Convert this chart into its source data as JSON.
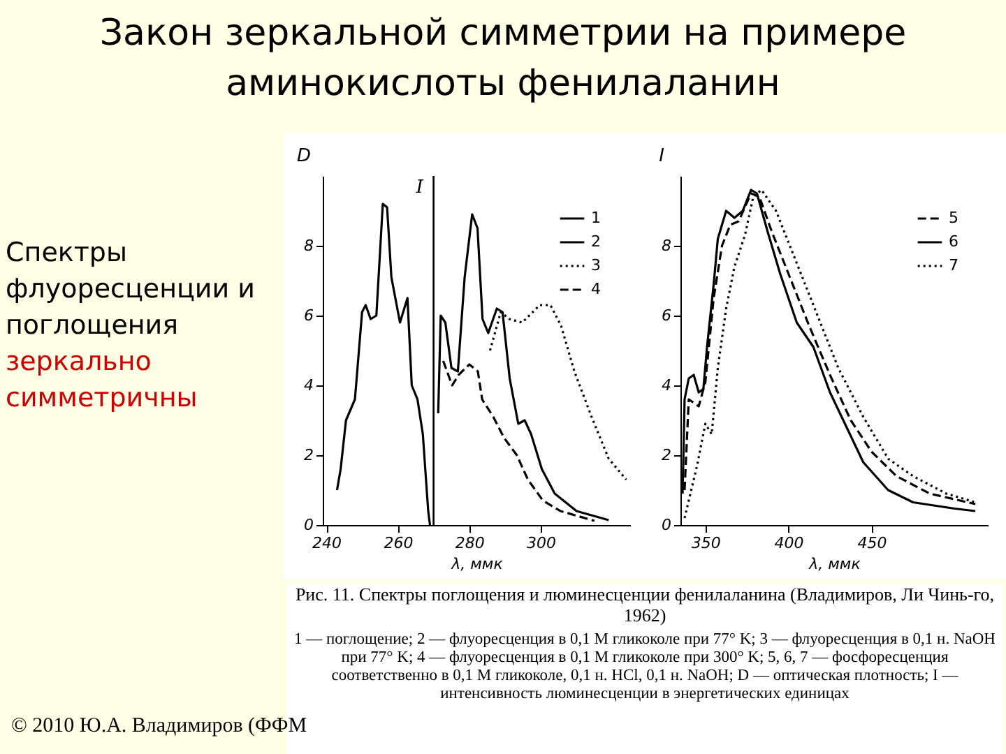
{
  "chart_data": [
    {
      "type": "line",
      "title": "Закон зеркальной симметрии на примере аминокислоты фенилаланин",
      "xlabel": "λ, ммк",
      "ylabel": "D",
      "xlim": [
        239,
        325
      ],
      "xticks": [
        240,
        260,
        280,
        300
      ],
      "ylim": [
        0,
        10
      ],
      "yticks": [
        0,
        2,
        4,
        6,
        8
      ],
      "grid": false,
      "legend": "top right",
      "marker": "none",
      "annotations": [
        "Спектры флуоресценции и поглощения",
        "зеркально симметричны",
        "Рис. 11. Спектры поглощения и люминесценции фенилаланина (Владимиров, Ли Чинь-го, 1962)",
        "1 — поглощение; 2 — флуоресценция в 0,1 M гликоколе при 77° K; 3 — флуоресценция в 0,1 н. NaOH при 77° K; 4 — флуоресценция в 0,1 M гликоколе при 300° K; 5, 6, 7 — фосфоресценция соответственно в 0,1 M гликоколе, 0,1 н. HCl, 0,1 н. NaOH; D — оптическая плотность; I — интенсивность люминесценции в энергетических единицах",
        "© 2010 Ю.А. Владимиров (ФФМ"
      ],
      "ref_lines": [
        {
          "axis": "x",
          "value": 270,
          "label": "I",
          "color": "#000000"
        }
      ],
      "series": [
        {
          "name": "1",
          "color": "#000000",
          "line_style": "solid",
          "x": [
            243,
            244,
            245.5,
            248,
            250,
            251,
            252.4,
            254,
            255.8,
            257,
            258.2,
            260.6,
            262.7,
            263.9,
            265.5,
            267,
            268.5,
            269
          ],
          "values": [
            1.0,
            1.6,
            3.0,
            3.6,
            6.1,
            6.3,
            5.9,
            6.0,
            9.2,
            9.1,
            7.1,
            5.8,
            6.5,
            4.0,
            3.6,
            2.6,
            0.4,
            0
          ]
        },
        {
          "name": "2",
          "color": "#000000",
          "line_style": "solid",
          "x": [
            271.3,
            272,
            273.3,
            275,
            276.8,
            278.7,
            280.8,
            282.3,
            283.7,
            285.3,
            287.7,
            289.3,
            291.3,
            293.7,
            295.5,
            297.3,
            300.3,
            303.9,
            310,
            319
          ],
          "values": [
            3.2,
            6.0,
            5.8,
            4.5,
            4.4,
            7.1,
            8.9,
            8.5,
            5.9,
            5.5,
            6.2,
            6.1,
            4.2,
            2.9,
            3.0,
            2.6,
            1.6,
            0.9,
            0.4,
            0.14
          ]
        },
        {
          "name": "3",
          "color": "#000000",
          "line_style": "dotted",
          "x": [
            285.8,
            288.8,
            291.2,
            294.8,
            299.7,
            302.7,
            305.7,
            309.4,
            314.2,
            319,
            323.9
          ],
          "values": [
            5.0,
            6.1,
            5.9,
            5.8,
            6.3,
            6.3,
            5.7,
            4.4,
            3.1,
            1.9,
            1.3
          ]
        },
        {
          "name": "4",
          "color": "#000000",
          "line_style": "dashed",
          "x": [
            272.7,
            275.2,
            277,
            280,
            282.4,
            283.6,
            286.7,
            289.7,
            293.3,
            296.4,
            300.6,
            305.5,
            315
          ],
          "values": [
            4.7,
            4.0,
            4.3,
            4.6,
            4.4,
            3.6,
            3.1,
            2.5,
            2.0,
            1.3,
            0.7,
            0.4,
            0.12
          ]
        }
      ]
    },
    {
      "type": "line",
      "xlabel": "λ, ммк",
      "ylabel": "I",
      "xlim": [
        335,
        520
      ],
      "xticks": [
        350,
        400,
        450
      ],
      "ylim": [
        0,
        10
      ],
      "yticks": [
        0,
        2,
        4,
        6,
        8
      ],
      "grid": false,
      "legend": "top right",
      "marker": "none",
      "series": [
        {
          "name": "5",
          "color": "#000000",
          "line_style": "dashed",
          "x": [
            337.5,
            340,
            346,
            350,
            355,
            360,
            365,
            370,
            377.5,
            382.5,
            390,
            400,
            412.5,
            425,
            437.5,
            450,
            465,
            485,
            512.5
          ],
          "values": [
            1.0,
            3.6,
            3.4,
            4.1,
            6.5,
            8.0,
            8.6,
            8.7,
            9.5,
            9.4,
            8.4,
            7.2,
            5.7,
            4.3,
            3.0,
            2.1,
            1.4,
            0.9,
            0.6
          ]
        },
        {
          "name": "6",
          "color": "#000000",
          "line_style": "solid",
          "x": [
            336.3,
            337.5,
            340,
            343,
            346,
            348.8,
            351,
            355,
            357.5,
            362.5,
            367.5,
            372.5,
            377.5,
            381,
            387.5,
            395,
            405,
            415,
            425,
            435,
            445,
            460,
            475,
            500,
            512.5
          ],
          "values": [
            0.9,
            3.6,
            4.2,
            4.3,
            3.8,
            3.9,
            5.1,
            6.9,
            8.2,
            9.0,
            8.8,
            9.0,
            9.6,
            9.5,
            8.4,
            7.2,
            5.8,
            5.1,
            3.8,
            2.8,
            1.8,
            1.0,
            0.65,
            0.47,
            0.4
          ]
        },
        {
          "name": "7",
          "color": "#000000",
          "line_style": "dotted",
          "x": [
            337.5,
            345,
            350,
            353.8,
            357.5,
            362.5,
            367.5,
            373.8,
            378.8,
            383.8,
            392.5,
            402.5,
            415,
            430,
            445,
            460,
            475,
            495,
            512.5
          ],
          "values": [
            0.2,
            1.7,
            2.9,
            2.6,
            4.5,
            6.2,
            7.4,
            8.3,
            9.4,
            9.6,
            9.0,
            7.8,
            6.3,
            4.5,
            3.1,
            1.9,
            1.4,
            0.9,
            0.65
          ]
        }
      ]
    }
  ]
}
